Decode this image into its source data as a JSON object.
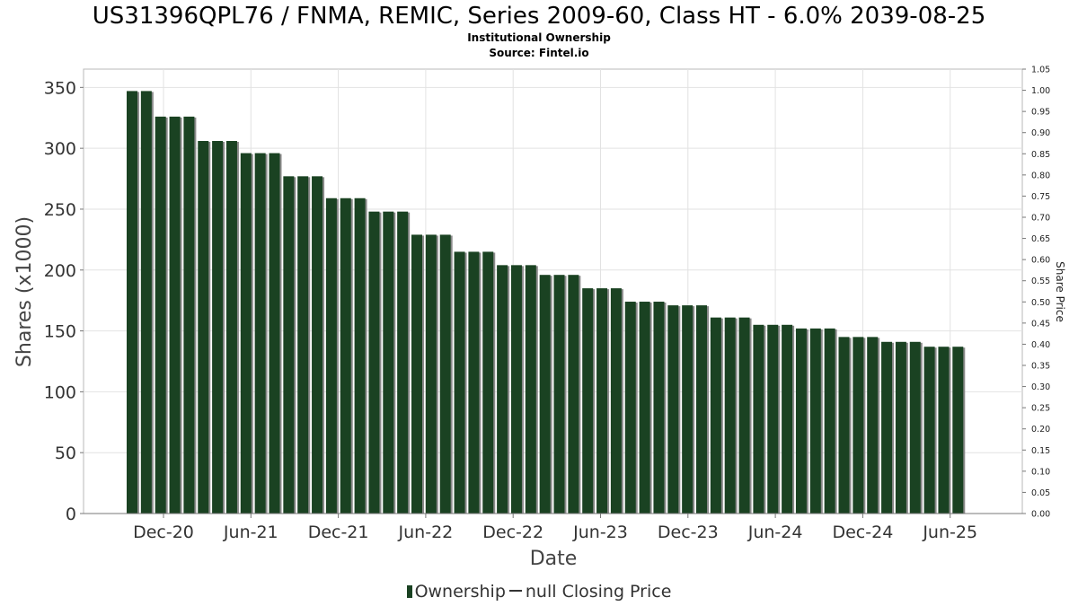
{
  "chart_data": {
    "type": "bar",
    "title": "US31396QPL76 / FNMA, REMIC, Series 2009-60, Class HT - 6.0% 2039-08-25",
    "subtitle": "Institutional Ownership",
    "source": "Source: Fintel.io",
    "xlabel": "Date",
    "ylabel": "Shares (x1000)",
    "y2label": "Share Price",
    "ylim": [
      0,
      365
    ],
    "y2lim": [
      0,
      1.05
    ],
    "yticks": [
      0,
      50,
      100,
      150,
      200,
      250,
      300,
      350
    ],
    "y2ticks": [
      "0.00",
      "0.05",
      "0.10",
      "0.15",
      "0.20",
      "0.25",
      "0.30",
      "0.35",
      "0.40",
      "0.45",
      "0.50",
      "0.55",
      "0.60",
      "0.65",
      "0.70",
      "0.75",
      "0.80",
      "0.85",
      "0.90",
      "0.95",
      "1.00",
      "1.05"
    ],
    "xticks": [
      "Dec-20",
      "Jun-21",
      "Dec-21",
      "Jun-22",
      "Dec-22",
      "Jun-23",
      "Dec-23",
      "Jun-24",
      "Dec-24",
      "Jun-25"
    ],
    "grid": true,
    "legend_position": "bottom",
    "bar_color": "#1a4222",
    "series": [
      {
        "name": "Ownership",
        "values": [
          347,
          347,
          326,
          326,
          326,
          306,
          306,
          306,
          296,
          296,
          296,
          277,
          277,
          277,
          259,
          259,
          259,
          248,
          248,
          248,
          229,
          229,
          229,
          215,
          215,
          215,
          204,
          204,
          204,
          196,
          196,
          196,
          185,
          185,
          185,
          174,
          174,
          174,
          171,
          171,
          171,
          161,
          161,
          161,
          155,
          155,
          155,
          152,
          152,
          152,
          145,
          145,
          145,
          141,
          141,
          141,
          137,
          137,
          137
        ]
      }
    ],
    "legend": [
      {
        "label": "Ownership",
        "kind": "bar"
      },
      {
        "label": "null Closing Price",
        "kind": "line"
      }
    ]
  }
}
